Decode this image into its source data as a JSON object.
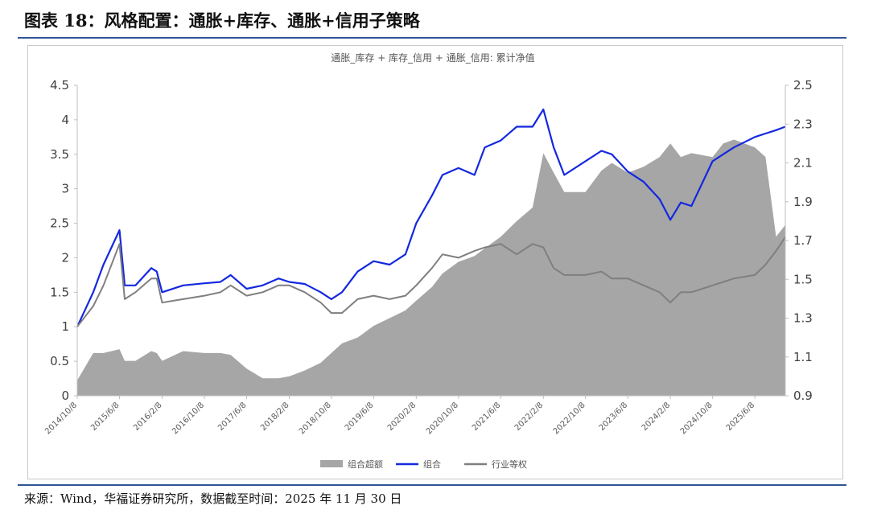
{
  "figure_title": "图表 18：风格配置：通胀+库存、通胀+信用子策略",
  "source_note": "来源：Wind，华福证券研究所，数据截至时间：2025 年 11 月 30 日",
  "colors": {
    "excess": "#a6a6a6",
    "combo": "#1428e0",
    "benchmark": "#7f7f7f",
    "rule": "#2f5597"
  },
  "chart_data": {
    "type": "line",
    "title": "通胀_库存 + 库存_信用 + 通胀_信用: 累计净值",
    "x_tick_labels": [
      "2014/10/8",
      "2015/6/8",
      "2016/2/8",
      "2016/10/8",
      "2017/6/8",
      "2018/2/8",
      "2018/10/8",
      "2019/6/8",
      "2020/2/8",
      "2020/10/8",
      "2021/6/8",
      "2022/2/8",
      "2022/10/8",
      "2023/6/8",
      "2024/2/8",
      "2024/10/8",
      "2025/6/8"
    ],
    "y_left": {
      "lim": [
        0,
        4.5
      ],
      "ticks": [
        "0",
        "0.5",
        "1",
        "1.5",
        "2",
        "2.5",
        "3",
        "3.5",
        "4",
        "4.5"
      ]
    },
    "y_right": {
      "lim": [
        0.9,
        2.5
      ],
      "ticks": [
        "0.9",
        "1.1",
        "1.3",
        "1.5",
        "1.7",
        "1.9",
        "2.1",
        "2.3",
        "2.5"
      ]
    },
    "x": [
      "2014/10/8",
      "2015/1/8",
      "2015/3/8",
      "2015/6/8",
      "2015/7/8",
      "2015/9/8",
      "2015/12/8",
      "2016/1/8",
      "2016/2/8",
      "2016/6/8",
      "2016/10/8",
      "2017/1/8",
      "2017/3/8",
      "2017/6/8",
      "2017/9/8",
      "2017/12/8",
      "2018/2/8",
      "2018/5/8",
      "2018/8/8",
      "2018/10/8",
      "2018/12/8",
      "2019/3/8",
      "2019/6/8",
      "2019/9/8",
      "2019/12/8",
      "2020/2/8",
      "2020/5/8",
      "2020/7/8",
      "2020/10/8",
      "2021/1/8",
      "2021/3/8",
      "2021/6/8",
      "2021/9/8",
      "2021/12/8",
      "2022/2/8",
      "2022/4/8",
      "2022/6/8",
      "2022/10/8",
      "2023/1/8",
      "2023/3/8",
      "2023/6/8",
      "2023/9/8",
      "2023/12/8",
      "2024/2/8",
      "2024/4/8",
      "2024/6/8",
      "2024/10/8",
      "2024/12/8",
      "2025/2/8",
      "2025/6/8",
      "2025/8/8",
      "2025/10/8",
      "2025/11/30"
    ],
    "series": [
      {
        "name": "组合超额",
        "type": "area",
        "axis": "right",
        "values": [
          0.98,
          1.12,
          1.12,
          1.14,
          1.08,
          1.08,
          1.13,
          1.12,
          1.08,
          1.13,
          1.12,
          1.12,
          1.11,
          1.04,
          0.99,
          0.99,
          1.0,
          1.03,
          1.07,
          1.12,
          1.17,
          1.2,
          1.26,
          1.3,
          1.34,
          1.39,
          1.46,
          1.53,
          1.59,
          1.62,
          1.66,
          1.72,
          1.8,
          1.87,
          2.15,
          2.05,
          1.95,
          1.95,
          2.06,
          2.1,
          2.05,
          2.08,
          2.13,
          2.2,
          2.13,
          2.15,
          2.13,
          2.2,
          2.22,
          2.18,
          2.13,
          1.72,
          1.78
        ]
      },
      {
        "name": "组合",
        "type": "line",
        "axis": "left",
        "values": [
          1.0,
          1.5,
          1.9,
          2.4,
          1.6,
          1.6,
          1.85,
          1.8,
          1.5,
          1.6,
          1.63,
          1.65,
          1.75,
          1.55,
          1.6,
          1.7,
          1.65,
          1.62,
          1.5,
          1.4,
          1.5,
          1.8,
          1.95,
          1.9,
          2.05,
          2.5,
          2.9,
          3.2,
          3.3,
          3.2,
          3.6,
          3.7,
          3.9,
          3.9,
          4.15,
          3.6,
          3.2,
          3.4,
          3.55,
          3.5,
          3.25,
          3.1,
          2.85,
          2.55,
          2.8,
          2.75,
          3.4,
          3.5,
          3.6,
          3.75,
          3.8,
          3.85,
          3.9
        ]
      },
      {
        "name": "行业等权",
        "type": "line",
        "axis": "left",
        "values": [
          1.0,
          1.3,
          1.6,
          2.2,
          1.4,
          1.5,
          1.7,
          1.7,
          1.35,
          1.4,
          1.45,
          1.5,
          1.6,
          1.45,
          1.5,
          1.6,
          1.6,
          1.5,
          1.35,
          1.2,
          1.2,
          1.4,
          1.45,
          1.4,
          1.45,
          1.6,
          1.85,
          2.05,
          2.0,
          2.1,
          2.15,
          2.2,
          2.05,
          2.2,
          2.15,
          1.85,
          1.75,
          1.75,
          1.8,
          1.7,
          1.7,
          1.6,
          1.5,
          1.35,
          1.5,
          1.5,
          1.6,
          1.65,
          1.7,
          1.75,
          1.9,
          2.1,
          2.3
        ]
      }
    ],
    "legend_position": "bottom",
    "grid": false
  }
}
